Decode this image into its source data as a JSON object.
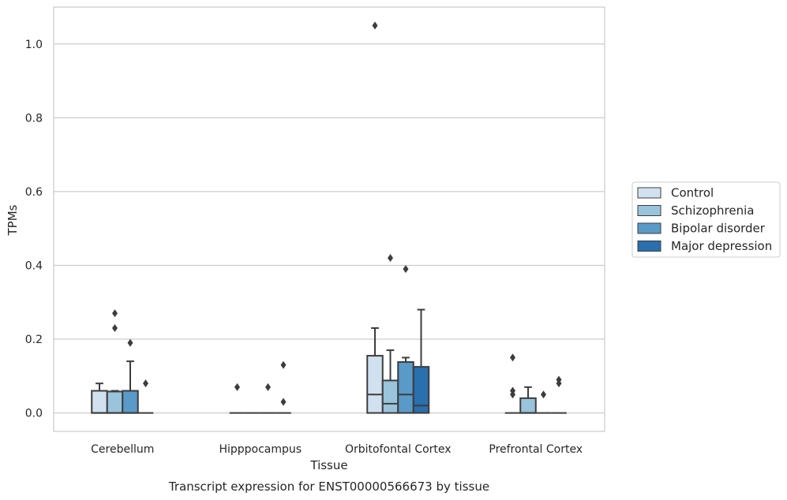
{
  "chart_data": {
    "type": "box",
    "title": "",
    "caption": "Transcript expression for ENST00000566673 by tissue",
    "xlabel": "Tissue",
    "ylabel": "TPMs",
    "ylim": [
      -0.05,
      1.1
    ],
    "yticks": [
      0.0,
      0.2,
      0.4,
      0.6,
      0.8,
      1.0
    ],
    "ytick_labels": [
      "0.0",
      "0.2",
      "0.4",
      "0.6",
      "0.8",
      "1.0"
    ],
    "grid": "horizontal",
    "legend_position": "right",
    "categories": [
      "Cerebellum",
      "Hipppocampus",
      "Orbitofontal Cortex",
      "Prefrontal Cortex"
    ],
    "series": [
      {
        "name": "Control",
        "color": "#d2e1f0",
        "boxes": [
          {
            "q1": 0.0,
            "median": 0.0,
            "q3": 0.06,
            "whisker_low": 0.0,
            "whisker_high": 0.08,
            "outliers": []
          },
          {
            "q1": 0.0,
            "median": 0.0,
            "q3": 0.0,
            "whisker_low": 0.0,
            "whisker_high": 0.0,
            "outliers": [
              0.07
            ]
          },
          {
            "q1": 0.0,
            "median": 0.05,
            "q3": 0.155,
            "whisker_low": 0.0,
            "whisker_high": 0.23,
            "outliers": [
              1.05
            ]
          },
          {
            "q1": 0.0,
            "median": 0.0,
            "q3": 0.0,
            "whisker_low": 0.0,
            "whisker_high": 0.0,
            "outliers": [
              0.15,
              0.06,
              0.05
            ]
          }
        ]
      },
      {
        "name": "Schizophrenia",
        "color": "#9ac3dc",
        "boxes": [
          {
            "q1": 0.0,
            "median": 0.0,
            "q3": 0.058,
            "whisker_low": 0.0,
            "whisker_high": 0.06,
            "outliers": [
              0.27,
              0.23
            ]
          },
          {
            "q1": 0.0,
            "median": 0.0,
            "q3": 0.0,
            "whisker_low": 0.0,
            "whisker_high": 0.0,
            "outliers": []
          },
          {
            "q1": 0.0,
            "median": 0.025,
            "q3": 0.088,
            "whisker_low": 0.0,
            "whisker_high": 0.17,
            "outliers": [
              0.42
            ]
          },
          {
            "q1": 0.0,
            "median": 0.0,
            "q3": 0.04,
            "whisker_low": 0.0,
            "whisker_high": 0.07,
            "outliers": []
          }
        ]
      },
      {
        "name": "Bipolar disorder",
        "color": "#5a9ac8",
        "boxes": [
          {
            "q1": 0.0,
            "median": 0.0,
            "q3": 0.06,
            "whisker_low": 0.0,
            "whisker_high": 0.14,
            "outliers": [
              0.19
            ]
          },
          {
            "q1": 0.0,
            "median": 0.0,
            "q3": 0.0,
            "whisker_low": 0.0,
            "whisker_high": 0.0,
            "outliers": [
              0.07
            ]
          },
          {
            "q1": 0.0,
            "median": 0.05,
            "q3": 0.138,
            "whisker_low": 0.0,
            "whisker_high": 0.15,
            "outliers": [
              0.39
            ]
          },
          {
            "q1": 0.0,
            "median": 0.0,
            "q3": 0.0,
            "whisker_low": 0.0,
            "whisker_high": 0.0,
            "outliers": [
              0.05
            ]
          }
        ]
      },
      {
        "name": "Major depression",
        "color": "#2a6fae",
        "boxes": [
          {
            "q1": 0.0,
            "median": 0.0,
            "q3": 0.0,
            "whisker_low": 0.0,
            "whisker_high": 0.0,
            "outliers": [
              0.08
            ]
          },
          {
            "q1": 0.0,
            "median": 0.0,
            "q3": 0.0,
            "whisker_low": 0.0,
            "whisker_high": 0.0,
            "outliers": [
              0.13,
              0.03
            ]
          },
          {
            "q1": 0.0,
            "median": 0.02,
            "q3": 0.125,
            "whisker_low": 0.0,
            "whisker_high": 0.28,
            "outliers": []
          },
          {
            "q1": 0.0,
            "median": 0.0,
            "q3": 0.0,
            "whisker_low": 0.0,
            "whisker_high": 0.0,
            "outliers": [
              0.09,
              0.08
            ]
          }
        ]
      }
    ]
  }
}
